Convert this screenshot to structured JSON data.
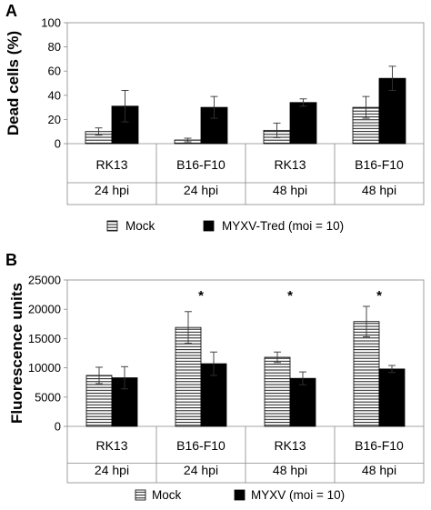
{
  "chart_data": [
    {
      "panel": "A",
      "type": "bar",
      "ylabel": "Dead cells (%)",
      "ylim": [
        0,
        100
      ],
      "yticks": [
        0,
        20,
        40,
        60,
        80,
        100
      ],
      "categories": [
        {
          "cell": "RK13",
          "time": "24 hpi"
        },
        {
          "cell": "B16-F10",
          "time": "24 hpi"
        },
        {
          "cell": "RK13",
          "time": "48 hpi"
        },
        {
          "cell": "B16-F10",
          "time": "48 hpi"
        }
      ],
      "series": [
        {
          "name": "Mock",
          "pattern": "hatched",
          "values": [
            10,
            3,
            11,
            30
          ],
          "errors": [
            3,
            1.5,
            6,
            9
          ]
        },
        {
          "name": "MYXV-Tred (moi = 10)",
          "pattern": "solid",
          "values": [
            31,
            30,
            34,
            54
          ],
          "errors": [
            13,
            9,
            3,
            10
          ]
        }
      ],
      "legend_position": "bottom",
      "significance": [],
      "grid": false
    },
    {
      "panel": "B",
      "type": "bar",
      "ylabel": "Fluorescence units",
      "ylim": [
        0,
        25000
      ],
      "yticks": [
        0,
        5000,
        10000,
        15000,
        20000,
        25000
      ],
      "categories": [
        {
          "cell": "RK13",
          "time": "24 hpi"
        },
        {
          "cell": "B16-F10",
          "time": "24 hpi"
        },
        {
          "cell": "RK13",
          "time": "48 hpi"
        },
        {
          "cell": "B16-F10",
          "time": "48 hpi"
        }
      ],
      "series": [
        {
          "name": "Mock",
          "pattern": "hatched",
          "values": [
            8700,
            16900,
            11800,
            17900
          ],
          "errors": [
            1400,
            2700,
            900,
            2600
          ]
        },
        {
          "name": "MYXV (moi = 10)",
          "pattern": "solid",
          "values": [
            8300,
            10700,
            8200,
            9800
          ],
          "errors": [
            1900,
            2000,
            1100,
            600
          ]
        }
      ],
      "legend_position": "bottom",
      "significance": [
        "",
        "*",
        "*",
        "*"
      ],
      "grid": false
    }
  ]
}
